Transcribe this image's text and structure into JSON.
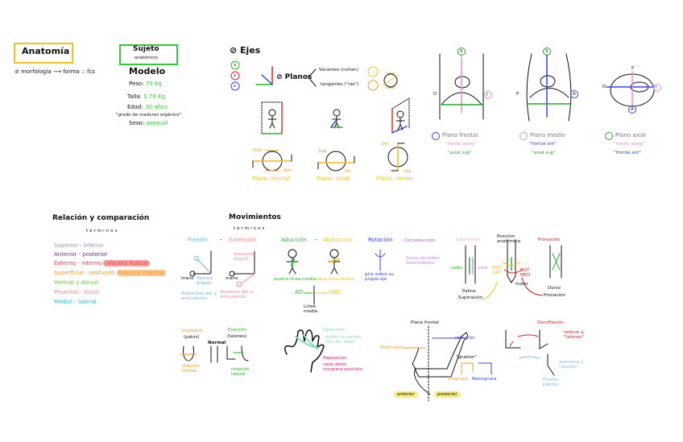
{
  "anatomy": {
    "title": "Anatomía",
    "morphology": "⊘ morfología ⟶ forma :: fcs",
    "subject_title": "Sujeto",
    "subject_subtitle": "anatómico",
    "model_title": "Modelo",
    "weight_label": "Peso:",
    "weight_value": "70 Kg",
    "height_label": "Talla:",
    "height_value": "1.70 Kg",
    "age_label": "Edad:",
    "age_value": "30 años",
    "age_note": "\"grado de madurez orgánico\"",
    "sex_label": "Sexo:",
    "sex_value": "asexual"
  },
  "axes": {
    "title": "⊘ Ejes",
    "x": "x",
    "y": "y",
    "z": "z"
  },
  "planes": {
    "title": "⊘ Planos",
    "secant": "Secantes (cortan)",
    "tangent": "tangentes (\"ras\")",
    "frontal": {
      "label": "Plano: frontal",
      "top": "Post",
      "bottom": "Ant"
    },
    "axial": {
      "label": "Plano: axial",
      "top": "Sup",
      "bottom": "Inf"
    },
    "medial": {
      "label": "Plano: medio",
      "top": "Der",
      "bottom": "Izq"
    }
  },
  "views": [
    {
      "letter_top": "S",
      "letter_side": "I",
      "letter_left": "D",
      "title": "Plano frontal",
      "line1": "\"medio alarg\"",
      "line2": "\"axial sup\"",
      "check_color": "#3344ee"
    },
    {
      "letter_top": "S",
      "letter_side": "A",
      "letter_left": "P",
      "title": "Plano medio",
      "line1": "\"frontal ant\"",
      "line2": "\"axial sup\"",
      "check_color": "#f08cc8"
    },
    {
      "letter_top": "P",
      "letter_side": "I",
      "letter_left": "D",
      "letter_bottom": "A",
      "title": "Plano axial",
      "line1": "\"medio alarg\"",
      "line2": "\"frontal ant\"",
      "check_color": "#22aa22"
    }
  ],
  "relation": {
    "title": "Relación y comparación",
    "subtitle": "términos",
    "items": [
      {
        "text": "Superior - inferior",
        "color": "#999999"
      },
      {
        "text": "Anterior - posterior",
        "color": "#7a2a9a"
      },
      {
        "text": "Externo - interno",
        "color": "#ee4444",
        "tag": "(víscera hueca)"
      },
      {
        "text": "Superficial - profundo",
        "color": "#f39a2a",
        "tag": "(víscera maciza)"
      },
      {
        "text": "Ventral y dorsal",
        "color": "#66cc33"
      },
      {
        "text": "Proximal - distal",
        "color": "#f28b8b"
      },
      {
        "text": "Medial - lateral",
        "color": "#22bbdd"
      }
    ]
  },
  "movements": {
    "title": "Movimientos",
    "subtitle": "términos",
    "flexion": "Flexión",
    "extension": "Extensión",
    "dash": "-",
    "hand": "mano",
    "reduce_angle": "Reduce ángulo",
    "increase_angle": "Aumenta ángulo",
    "flexion_note": "Reducción del ∠ articulación",
    "extension_note": "Aumento del ∠ articulación",
    "adduction": "Aducción",
    "abduction": "Abducción",
    "adduction_note": "acerca línea media",
    "abduction_note": "aleja línea media",
    "ad": "AD",
    "abd": "ABD",
    "midline": "Línea media",
    "rotation": "Rotación",
    "circumduction": "- Circunducción",
    "circumduction_note": "Suma de todos movimientos",
    "rotation_note": "gira sobre su propio eje",
    "supination": "Supinación",
    "anatomic_position": "Posición anatómica",
    "pronation": "Pronación",
    "radius": "radio",
    "ulna": "ulna",
    "rot_lat": "ROT LAT",
    "rot_med": "ROT MED",
    "palm": "Palma",
    "palm_sup": "Supinación",
    "back": "Dorso",
    "back_pron": "Pronación",
    "inversion": "Inversión",
    "inversion_sub": "(patos)",
    "normal": "Normal",
    "eversion": "Eversión",
    "eversion_sub": "(talones)",
    "medial_rotation": "rotación medial",
    "lateral_rotation": "rotación lateral",
    "opposition": "Oposición",
    "opposition_note": "dedos se juntan con 1er dedo",
    "reposition": "Reposición",
    "reposition_note": "cada dedo recupera posición",
    "frontal_plane": "Plano frontal",
    "retrusion": "retrusión",
    "protrusion": "Protrusión",
    "gnathion": "\"gnatión\"",
    "prognathic": "Prognata",
    "retrognathic": "Retrognata",
    "anterior": "anterior",
    "posterior": "posterior",
    "dorsiflexion": "Dorsiflexión",
    "dorsi_note": "reduce ∠ \"talones\"",
    "plantar_note": "aumenta ∠ \"puntas\"",
    "plantar_flexion": "Flexión plantar"
  }
}
